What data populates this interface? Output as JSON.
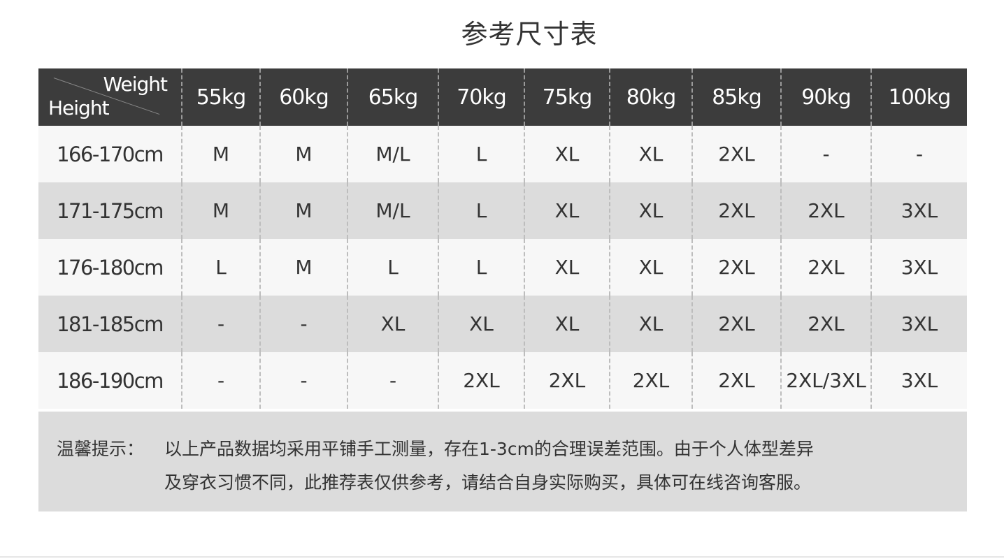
{
  "title": "参考尺寸表",
  "table": {
    "corner_weight": "Weight",
    "corner_height": "Height",
    "columns": [
      "55kg",
      "60kg",
      "65kg",
      "70kg",
      "75kg",
      "80kg",
      "85kg",
      "90kg",
      "100kg"
    ],
    "rows": [
      {
        "height": "166-170cm",
        "sizes": [
          "M",
          "M",
          "M/L",
          "L",
          "XL",
          "XL",
          "2XL",
          "-",
          "-"
        ]
      },
      {
        "height": "171-175cm",
        "sizes": [
          "M",
          "M",
          "M/L",
          "L",
          "XL",
          "XL",
          "2XL",
          "2XL",
          "3XL"
        ]
      },
      {
        "height": "176-180cm",
        "sizes": [
          "L",
          "M",
          "L",
          "L",
          "XL",
          "XL",
          "2XL",
          "2XL",
          "3XL"
        ]
      },
      {
        "height": "181-185cm",
        "sizes": [
          "-",
          "-",
          "XL",
          "XL",
          "XL",
          "XL",
          "2XL",
          "2XL",
          "3XL"
        ]
      },
      {
        "height": "186-190cm",
        "sizes": [
          "-",
          "-",
          "-",
          "2XL",
          "2XL",
          "2XL",
          "2XL",
          "2XL/3XL",
          "3XL"
        ]
      }
    ]
  },
  "note": {
    "label": "温馨提示：",
    "line1": "以上产品数据均采用平铺手工测量，存在1-3cm的合理误差范围。由于个人体型差异",
    "line2": "及穿衣习惯不同，此推荐表仅供参考，请结合自身实际购买，具体可在线咨询客服。"
  }
}
